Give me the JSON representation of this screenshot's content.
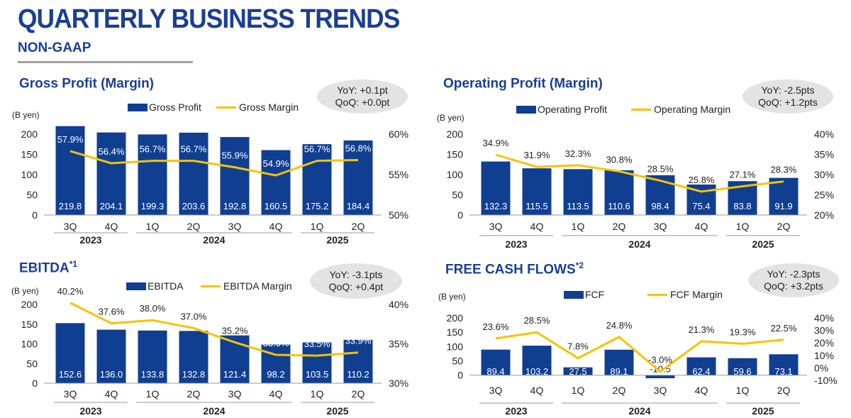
{
  "header": {
    "title": "QUARTERLY BUSINESS TRENDS",
    "subtitle": "NON-GAAP"
  },
  "colors": {
    "bar": "#103f91",
    "line": "#f5c400",
    "title": "#1a3f94",
    "badge": "#e3e3e3"
  },
  "chart_data": [
    {
      "id": "gross",
      "type": "bar",
      "title": "Gross Profit (Margin)",
      "title_sup": "",
      "yoy": "YoY:  +0.1pt",
      "qoq": "QoQ: +0.0pt",
      "unit_label": "(B yen)",
      "bar_legend": "Gross Profit",
      "line_legend": "Gross Margin",
      "categories": [
        "3Q",
        "4Q",
        "1Q",
        "2Q",
        "3Q",
        "4Q",
        "1Q",
        "2Q"
      ],
      "years": [
        {
          "label": "2023",
          "from": 0,
          "to": 1
        },
        {
          "label": "2024",
          "from": 2,
          "to": 5
        },
        {
          "label": "2025",
          "from": 6,
          "to": 7
        }
      ],
      "bar_values": [
        219.8,
        204.1,
        199.3,
        203.6,
        192.8,
        160.5,
        175.2,
        184.4
      ],
      "bar_labels": [
        "219.8",
        "204.1",
        "199.3",
        "203.6",
        "192.8",
        "160.5",
        "175.2",
        "184.4"
      ],
      "line_values": [
        57.9,
        56.4,
        56.7,
        56.7,
        55.9,
        54.9,
        56.7,
        56.8
      ],
      "line_labels": [
        "57.9%",
        "56.4%",
        "56.7%",
        "56.7%",
        "55.9%",
        "54.9%",
        "56.7%",
        "56.8%"
      ],
      "left_ticks": [
        "0",
        "50",
        "100",
        "150",
        "200"
      ],
      "right_ticks": [
        "50%",
        "55%",
        "60%"
      ],
      "ylim_left": [
        0,
        200
      ],
      "ylim_right": [
        50,
        60
      ]
    },
    {
      "id": "operating",
      "type": "bar",
      "title": "Operating Profit (Margin)",
      "title_sup": "",
      "yoy": "YoY:  -2.5pts",
      "qoq": "QoQ: +1.2pts",
      "unit_label": "(B yen)",
      "bar_legend": "Operating Profit",
      "line_legend": "Operating Margin",
      "categories": [
        "3Q",
        "4Q",
        "1Q",
        "2Q",
        "3Q",
        "4Q",
        "1Q",
        "2Q"
      ],
      "years": [
        {
          "label": "2023",
          "from": 0,
          "to": 1
        },
        {
          "label": "2024",
          "from": 2,
          "to": 5
        },
        {
          "label": "2025",
          "from": 6,
          "to": 7
        }
      ],
      "bar_values": [
        132.3,
        115.5,
        113.5,
        110.6,
        98.4,
        75.4,
        83.8,
        91.9
      ],
      "bar_labels": [
        "132.3",
        "115.5",
        "113.5",
        "110.6",
        "98.4",
        "75.4",
        "83.8",
        "91.9"
      ],
      "line_values": [
        34.9,
        31.9,
        32.3,
        30.8,
        28.5,
        25.8,
        27.1,
        28.3
      ],
      "line_labels": [
        "34.9%",
        "31.9%",
        "32.3%",
        "30.8%",
        "28.5%",
        "25.8%",
        "27.1%",
        "28.3%"
      ],
      "left_ticks": [
        "0",
        "50",
        "100",
        "150",
        "200"
      ],
      "right_ticks": [
        "20%",
        "25%",
        "30%",
        "35%",
        "40%"
      ],
      "ylim_left": [
        0,
        200
      ],
      "ylim_right": [
        20,
        40
      ]
    },
    {
      "id": "ebitda",
      "type": "bar",
      "title": "EBITDA",
      "title_sup": "*1",
      "yoy": "YoY:  -3.1pts",
      "qoq": "QoQ: +0.4pt",
      "unit_label": "(B yen)",
      "bar_legend": "EBITDA",
      "line_legend": "EBITDA Margin",
      "categories": [
        "3Q",
        "4Q",
        "1Q",
        "2Q",
        "3Q",
        "4Q",
        "1Q",
        "2Q"
      ],
      "years": [
        {
          "label": "2023",
          "from": 0,
          "to": 1
        },
        {
          "label": "2024",
          "from": 2,
          "to": 5
        },
        {
          "label": "2025",
          "from": 6,
          "to": 7
        }
      ],
      "bar_values": [
        152.6,
        136.0,
        133.8,
        132.8,
        121.4,
        98.2,
        103.5,
        110.2
      ],
      "bar_labels": [
        "152.6",
        "136.0",
        "133.8",
        "132.8",
        "121.4",
        "98.2",
        "103.5",
        "110.2"
      ],
      "line_values": [
        40.2,
        37.6,
        38.0,
        37.0,
        35.2,
        33.6,
        33.5,
        33.9
      ],
      "line_labels": [
        "40.2%",
        "37.6%",
        "38.0%",
        "37.0%",
        "35.2%",
        "33.6%",
        "33.5%",
        "33.9%"
      ],
      "left_ticks": [
        "0",
        "50",
        "100",
        "150",
        "200"
      ],
      "right_ticks": [
        "30%",
        "35%",
        "40%"
      ],
      "ylim_left": [
        0,
        200
      ],
      "ylim_right": [
        30,
        40
      ]
    },
    {
      "id": "fcf",
      "type": "bar",
      "title": "FREE CASH FLOWS",
      "title_sup": "*2",
      "yoy": "YoY:  -2.3pts",
      "qoq": "QoQ: +3.2pts",
      "unit_label": "(B yen)",
      "bar_legend": "FCF",
      "line_legend": "FCF Margin",
      "categories": [
        "3Q",
        "4Q",
        "1Q",
        "2Q",
        "3Q",
        "4Q",
        "1Q",
        "2Q"
      ],
      "years": [
        {
          "label": "2023",
          "from": 0,
          "to": 1
        },
        {
          "label": "2024",
          "from": 2,
          "to": 5
        },
        {
          "label": "2025",
          "from": 6,
          "to": 7
        }
      ],
      "bar_values": [
        89.4,
        103.2,
        27.5,
        89.1,
        -10.5,
        62.4,
        59.6,
        73.1
      ],
      "bar_labels": [
        "89.4",
        "103.2",
        "27.5",
        "89.1",
        "-10.5",
        "62.4",
        "59.6",
        "73.1"
      ],
      "line_values": [
        23.6,
        28.5,
        7.8,
        24.8,
        -3.0,
        21.3,
        19.3,
        22.5
      ],
      "line_labels": [
        "23.6%",
        "28.5%",
        "7.8%",
        "24.8%",
        "-3.0%",
        "21.3%",
        "19.3%",
        "22.5%"
      ],
      "left_ticks": [
        "0",
        "50",
        "100",
        "150",
        "200"
      ],
      "right_ticks": [
        "-10%",
        "0%",
        "10%",
        "20%",
        "30%",
        "40%"
      ],
      "ylim_left": [
        -18,
        200
      ],
      "ylim_right": [
        -10,
        40
      ]
    }
  ]
}
